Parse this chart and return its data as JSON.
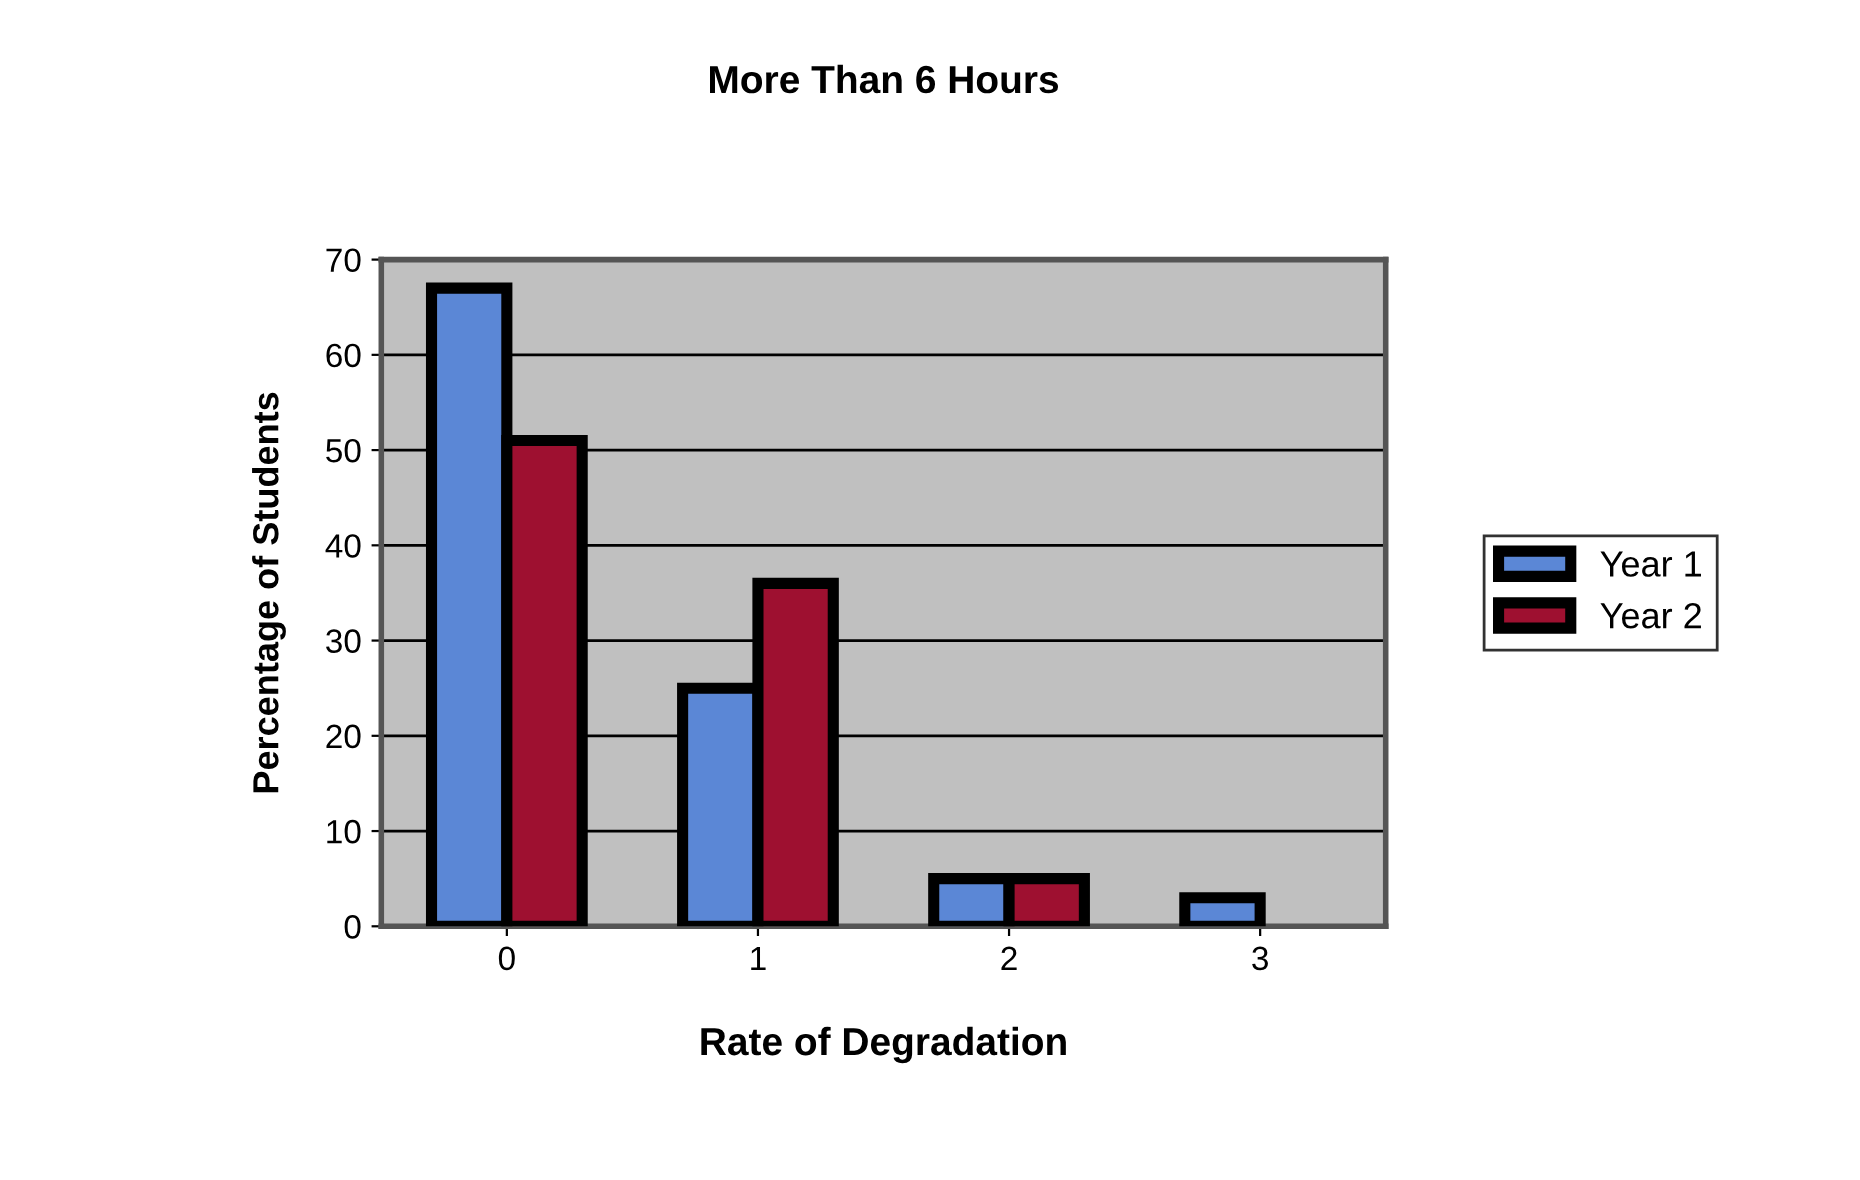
{
  "chart_data": {
    "type": "bar",
    "title": "More Than 6 Hours",
    "xlabel": "Rate of Degradation",
    "ylabel": "Percentage of Students",
    "categories": [
      "0",
      "1",
      "2",
      "3"
    ],
    "series": [
      {
        "name": "Year 1",
        "color": "#5b87d6",
        "values": [
          67,
          25,
          5,
          3
        ]
      },
      {
        "name": "Year 2",
        "color": "#9e1030",
        "values": [
          51,
          36,
          5,
          null
        ]
      }
    ],
    "ylim": [
      0,
      70
    ],
    "yticks": [
      0,
      10,
      20,
      30,
      40,
      50,
      60,
      70
    ],
    "grid": "y",
    "legend": "right"
  }
}
